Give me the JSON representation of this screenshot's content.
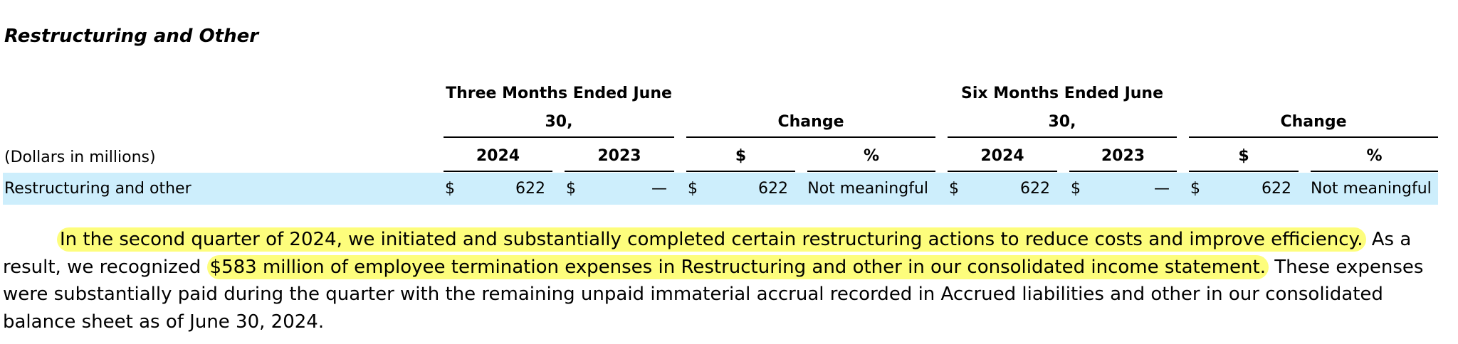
{
  "title": "Restructuring and Other",
  "table": {
    "stub_header": "(Dollars in millions)",
    "group_headers": [
      "Three Months Ended June 30,",
      "Change",
      "Six Months Ended June 30,",
      "Change"
    ],
    "column_headers": [
      "2024",
      "2023",
      "$",
      "%",
      "2024",
      "2023",
      "$",
      "%"
    ],
    "rows": [
      {
        "label": "Restructuring and other",
        "cells": [
          {
            "symbol": "$",
            "value": 622
          },
          {
            "symbol": "$",
            "value": "—"
          },
          {
            "symbol": "$",
            "value": 622
          },
          {
            "value": "Not meaningful"
          },
          {
            "symbol": "$",
            "value": 622
          },
          {
            "symbol": "$",
            "value": "—"
          },
          {
            "symbol": "$",
            "value": 622
          },
          {
            "value": "Not meaningful"
          }
        ]
      }
    ]
  },
  "paragraph": [
    {
      "text": "In the second quarter of 2024, we initiated and substantially completed certain restructuring actions to reduce costs and improve efficiency.",
      "highlight": true
    },
    {
      "text": " As a result, we recognized ",
      "highlight": false
    },
    {
      "text": "$583 million of employee termination expenses in Restructuring and other in our consolidated income statement.",
      "highlight": true
    },
    {
      "text": " These expenses were substantially paid during the quarter with the remaining unpaid immaterial accrual recorded in Accrued liabilities and other in our consolidated balance sheet as of June 30, 2024.",
      "highlight": false
    }
  ]
}
